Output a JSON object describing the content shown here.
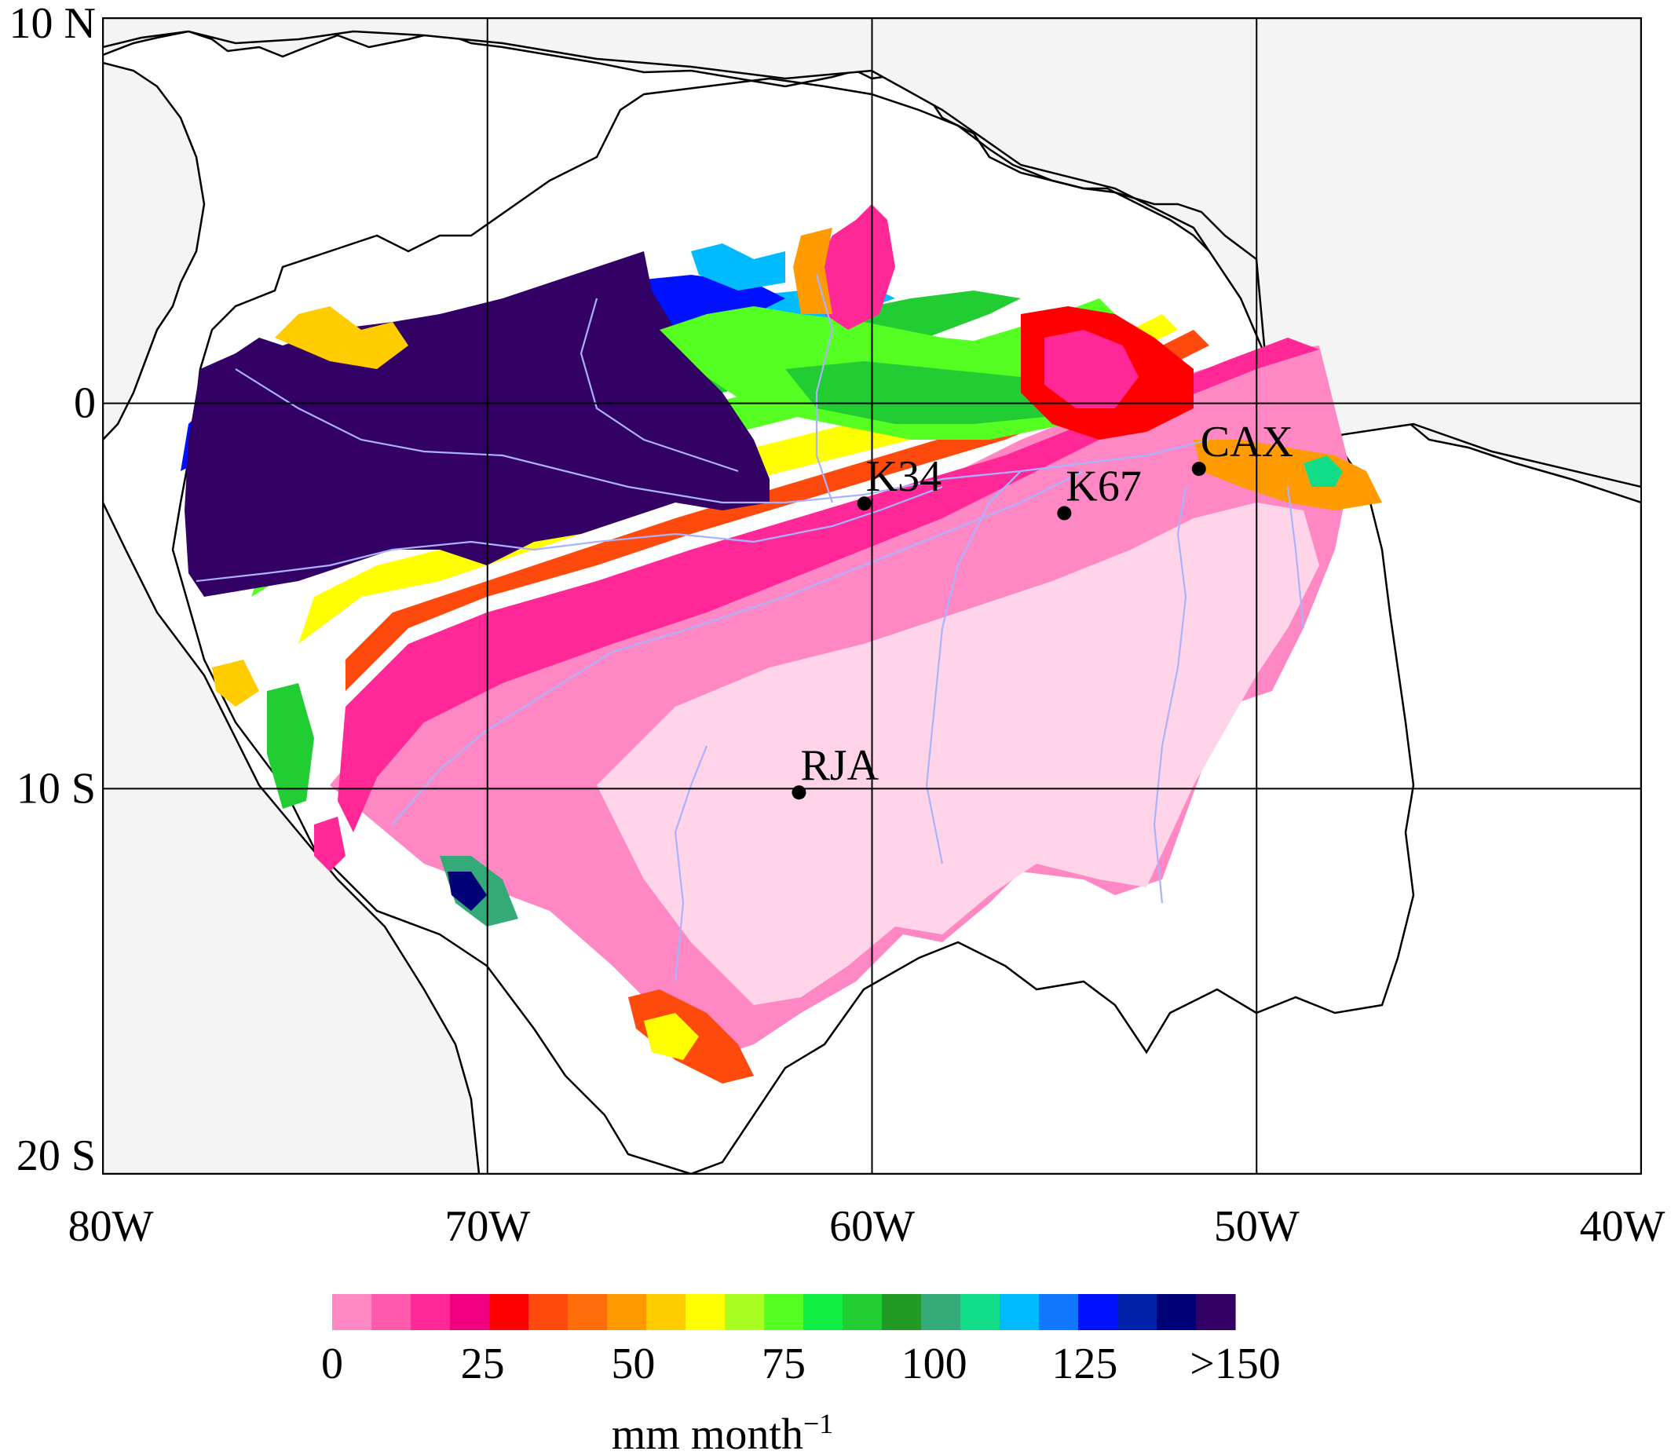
{
  "map": {
    "lon_range": [
      -80,
      -40
    ],
    "lat_range": [
      -20,
      10
    ],
    "grid": true,
    "land_fill": "#ffffff",
    "ocean_fill": "#f4f4f4",
    "river_color": "#aab2ff",
    "x_ticks": [
      {
        "lon": -80,
        "label": "80W"
      },
      {
        "lon": -70,
        "label": "70W"
      },
      {
        "lon": -60,
        "label": "60W"
      },
      {
        "lon": -50,
        "label": "50W"
      },
      {
        "lon": -40,
        "label": "40W"
      }
    ],
    "y_ticks": [
      {
        "lat": 10,
        "label": "10 N"
      },
      {
        "lat": 0,
        "label": "0"
      },
      {
        "lat": -10,
        "label": "10 S"
      },
      {
        "lat": -20,
        "label": "20 S"
      }
    ],
    "sites": [
      {
        "name": "K34",
        "lon": -60.2,
        "lat": -2.6
      },
      {
        "name": "K67",
        "lon": -55.0,
        "lat": -2.85
      },
      {
        "name": "CAX",
        "lon": -51.5,
        "lat": -1.7
      },
      {
        "name": "RJA",
        "lon": -61.9,
        "lat": -10.1
      }
    ]
  },
  "colorbar": {
    "colors": [
      "#ff88c4",
      "#ff5aac",
      "#ff2896",
      "#f00080",
      "#ff0000",
      "#ff4a0e",
      "#ff6e0a",
      "#ff9a00",
      "#ffcc00",
      "#ffff00",
      "#aaff22",
      "#55ff22",
      "#11ee44",
      "#22cc33",
      "#229922",
      "#33aa77",
      "#11dd88",
      "#00bbff",
      "#1177ff",
      "#0011ff",
      "#0022aa",
      "#000077",
      "#330066"
    ],
    "tick_labels": [
      "0",
      "25",
      "50",
      "75",
      "100",
      "125",
      ">150"
    ],
    "unit": "mm month",
    "unit_superscript": "−1"
  }
}
